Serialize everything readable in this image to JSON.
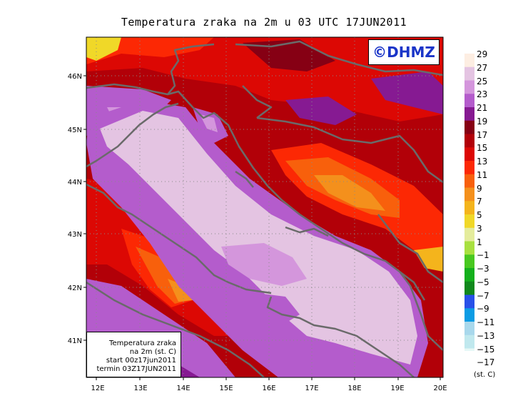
{
  "title": "Temperatura zraka na 2m u 03 UTC 17JUN2011",
  "logo_text": "©DHMZ",
  "info_box": {
    "line1": "Temperatura zraka",
    "line2": "na 2m (st. C)",
    "line3": "start 00z17jun2011",
    "line4": "termin 03Z17JUN2011"
  },
  "lat_labels": [
    "46N",
    "45N",
    "44N",
    "43N",
    "42N",
    "41N"
  ],
  "lon_labels": [
    "12E",
    "13E",
    "14E",
    "15E",
    "16E",
    "17E",
    "18E",
    "19E",
    "20E"
  ],
  "legend": {
    "unit": "(st. C)",
    "levels": [
      "29",
      "27",
      "25",
      "23",
      "21",
      "19",
      "17",
      "15",
      "13",
      "11",
      "9",
      "7",
      "5",
      "3",
      "1",
      "−1",
      "−3",
      "−5",
      "−7",
      "−9",
      "−11",
      "−13",
      "−15",
      "−17"
    ],
    "colors": [
      "#fdeee2",
      "#e4c4e2",
      "#d496dc",
      "#b45ccc",
      "#861a92",
      "#860014",
      "#b20008",
      "#dc0804",
      "#fc2804",
      "#f8600c",
      "#f4901c",
      "#f4b41c",
      "#f0d828",
      "#e4ec9c",
      "#a8e040",
      "#48c820",
      "#14b01c",
      "#10881c",
      "#2850e8",
      "#0c9ce4",
      "#a8d8ec",
      "#c0e8ee",
      "#e6f8f6"
    ]
  }
}
